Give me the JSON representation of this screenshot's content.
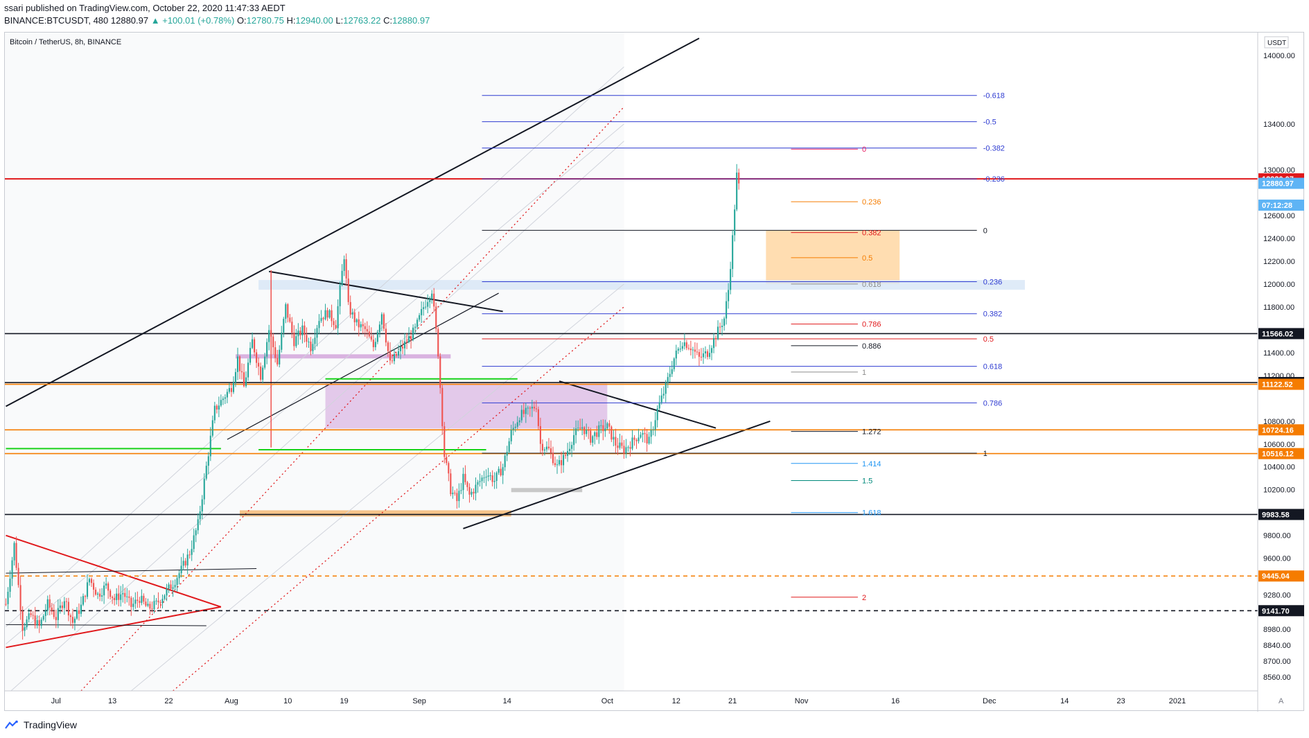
{
  "header": {
    "publisher_line": "ssari published on TradingView.com, October 22, 2020 11:47:33 AEDT",
    "symbol": "BINANCE:BTCUSDT, 480",
    "last": "12880.97",
    "change": "▲ +100.01 (+0.78%)",
    "o_label": "O:",
    "o": "12780.75",
    "h_label": "H:",
    "h": "12940.00",
    "l_label": "L:",
    "l": "12763.22",
    "c_label": "C:",
    "c": "12880.97"
  },
  "footer": {
    "brand": "TradingView",
    "brand_icon": "tradingview-logo-icon"
  },
  "colors": {
    "up": "#26a69a",
    "down": "#ef5350",
    "fib_blue": "#2e3bd1",
    "red_line": "#e0181b",
    "black": "#131722",
    "orange": "#f57c00",
    "green": "#19d21a",
    "purple_zone": "#e3c9ea",
    "orange_zone": "#ffd9a8"
  },
  "chart_data": {
    "type": "candlestick",
    "title": "Bitcoin / TetherUS, 8h, BINANCE",
    "currency": "USDT",
    "y_range": [
      8440,
      14200
    ],
    "price_axis_ticks": [
      8560,
      8700,
      8840,
      8980,
      9120,
      9280,
      9440,
      9600,
      9800,
      10000,
      10200,
      10400,
      10600,
      10800,
      11000,
      11200,
      11400,
      11600,
      11800,
      12000,
      12200,
      12400,
      12600,
      12800,
      13000,
      13400,
      14000
    ],
    "price_axis_labels": [
      "8560.00",
      "8700.00",
      "8840.00",
      "8980.00",
      "",
      "9280.00",
      "",
      "9600.00",
      "9800.00",
      "",
      "10200.00",
      "10400.00",
      "10600.00",
      "10800.00",
      "",
      "11200.00",
      "11400.00",
      "",
      "11800.00",
      "12000.00",
      "12200.00",
      "12400.00",
      "12600.00",
      "",
      "13000.00",
      "13400.00",
      "14000.00"
    ],
    "time_axis": [
      {
        "label": "Jul",
        "bar": 24
      },
      {
        "label": "13",
        "bar": 51
      },
      {
        "label": "22",
        "bar": 78
      },
      {
        "label": "Aug",
        "bar": 108
      },
      {
        "label": "10",
        "bar": 135
      },
      {
        "label": "19",
        "bar": 162
      },
      {
        "label": "Sep",
        "bar": 198
      },
      {
        "label": "14",
        "bar": 240
      },
      {
        "label": "Oct",
        "bar": 288
      },
      {
        "label": "12",
        "bar": 321
      },
      {
        "label": "21",
        "bar": 348
      },
      {
        "label": "Nov",
        "bar": 381
      },
      {
        "label": "16",
        "bar": 426
      },
      {
        "label": "Dec",
        "bar": 471
      },
      {
        "label": "14",
        "bar": 507
      },
      {
        "label": "23",
        "bar": 534
      },
      {
        "label": "2021",
        "bar": 561
      }
    ],
    "bars_total": 600,
    "last_bar": 351,
    "price_key_points": [
      [
        0,
        9200
      ],
      [
        4,
        9720
      ],
      [
        8,
        9000
      ],
      [
        12,
        9100
      ],
      [
        16,
        9000
      ],
      [
        20,
        9200
      ],
      [
        24,
        9080
      ],
      [
        28,
        9250
      ],
      [
        32,
        9040
      ],
      [
        36,
        9180
      ],
      [
        40,
        9420
      ],
      [
        44,
        9280
      ],
      [
        48,
        9360
      ],
      [
        52,
        9240
      ],
      [
        56,
        9300
      ],
      [
        60,
        9180
      ],
      [
        64,
        9250
      ],
      [
        68,
        9160
      ],
      [
        72,
        9200
      ],
      [
        76,
        9290
      ],
      [
        80,
        9380
      ],
      [
        84,
        9500
      ],
      [
        88,
        9650
      ],
      [
        92,
        9900
      ],
      [
        96,
        10400
      ],
      [
        100,
        10900
      ],
      [
        104,
        11000
      ],
      [
        108,
        11100
      ],
      [
        111,
        11350
      ],
      [
        114,
        11100
      ],
      [
        118,
        11500
      ],
      [
        122,
        11200
      ],
      [
        126,
        11600
      ],
      [
        130,
        11300
      ],
      [
        134,
        11800
      ],
      [
        138,
        11500
      ],
      [
        142,
        11600
      ],
      [
        146,
        11450
      ],
      [
        150,
        11700
      ],
      [
        154,
        11750
      ],
      [
        158,
        11650
      ],
      [
        162,
        12250
      ],
      [
        164,
        11800
      ],
      [
        168,
        11650
      ],
      [
        172,
        11600
      ],
      [
        176,
        11450
      ],
      [
        180,
        11750
      ],
      [
        184,
        11300
      ],
      [
        188,
        11400
      ],
      [
        192,
        11500
      ],
      [
        196,
        11600
      ],
      [
        200,
        11800
      ],
      [
        204,
        11950
      ],
      [
        207,
        11400
      ],
      [
        210,
        10500
      ],
      [
        213,
        10200
      ],
      [
        216,
        10100
      ],
      [
        219,
        10300
      ],
      [
        222,
        10150
      ],
      [
        226,
        10250
      ],
      [
        230,
        10350
      ],
      [
        234,
        10280
      ],
      [
        238,
        10400
      ],
      [
        242,
        10700
      ],
      [
        246,
        10850
      ],
      [
        250,
        10880
      ],
      [
        254,
        10940
      ],
      [
        256,
        10600
      ],
      [
        260,
        10550
      ],
      [
        264,
        10400
      ],
      [
        268,
        10500
      ],
      [
        272,
        10680
      ],
      [
        276,
        10750
      ],
      [
        280,
        10650
      ],
      [
        284,
        10720
      ],
      [
        288,
        10750
      ],
      [
        292,
        10600
      ],
      [
        296,
        10550
      ],
      [
        300,
        10620
      ],
      [
        304,
        10700
      ],
      [
        308,
        10620
      ],
      [
        312,
        10900
      ],
      [
        316,
        11100
      ],
      [
        320,
        11350
      ],
      [
        324,
        11500
      ],
      [
        328,
        11450
      ],
      [
        332,
        11350
      ],
      [
        336,
        11400
      ],
      [
        340,
        11550
      ],
      [
        344,
        11700
      ],
      [
        346,
        11950
      ],
      [
        348,
        12400
      ],
      [
        350,
        12950
      ],
      [
        351,
        12880
      ]
    ],
    "horizontal_levels": [
      {
        "value": "12920.07",
        "color": "#e0181b",
        "label_bg": "#e0181b",
        "style": "solid"
      },
      {
        "value": "11566.02",
        "color": "#131722",
        "label_bg": "#131722",
        "style": "solid"
      },
      {
        "value": "11138.00",
        "color": "#131722",
        "label_bg": "#131722",
        "style": "solid"
      },
      {
        "value": "11122.52",
        "color": "#f57c00",
        "label_bg": "#f57c00",
        "style": "solid"
      },
      {
        "value": "10724.16",
        "color": "#f57c00",
        "label_bg": "#f57c00",
        "style": "solid"
      },
      {
        "value": "10516.12",
        "color": "#f57c00",
        "label_bg": "#f57c00",
        "style": "solid"
      },
      {
        "value": "9983.58",
        "color": "#131722",
        "label_bg": "#131722",
        "style": "solid"
      },
      {
        "value": "9445.04",
        "color": "#f57c00",
        "label_bg": "#f57c00",
        "style": "dashed"
      },
      {
        "value": "9141.70",
        "color": "#131722",
        "label_bg": "#131722",
        "style": "dashed"
      }
    ],
    "price_labels_extra": [
      {
        "value": "12880.97",
        "bg": "#5eb4f5"
      },
      {
        "value": "07:12:28",
        "bg": "#5eb4f5",
        "price": 12690
      }
    ],
    "fib_blue": [
      {
        "label": "-0.618",
        "price": 13650
      },
      {
        "label": "-0.5",
        "price": 13420
      },
      {
        "label": "-0.382",
        "price": 13190
      },
      {
        "label": "-0.236",
        "price": 12920
      },
      {
        "label": "0",
        "price": 12470
      },
      {
        "label": "0.236",
        "price": 12020
      },
      {
        "label": "0.382",
        "price": 11740
      },
      {
        "label": "0.5",
        "price": 11520
      },
      {
        "label": "0.618",
        "price": 11280
      },
      {
        "label": "0.786",
        "price": 10960
      },
      {
        "label": "1",
        "price": 10520
      }
    ],
    "fib_colored": [
      {
        "label": "0",
        "price": 13180,
        "color": "#e91e63"
      },
      {
        "label": "0.236",
        "price": 12720,
        "color": "#f57c00"
      },
      {
        "label": "0.382",
        "price": 12450,
        "color": "#e0181b"
      },
      {
        "label": "0.5",
        "price": 12230,
        "color": "#f57c00"
      },
      {
        "label": "0.618",
        "price": 12000,
        "color": "#8d8d8d"
      },
      {
        "label": "0.786",
        "price": 11650,
        "color": "#e0181b"
      },
      {
        "label": "0.886",
        "price": 11460,
        "color": "#131722"
      },
      {
        "label": "1",
        "price": 11230,
        "color": "#8d8d8d"
      },
      {
        "label": "1.272",
        "price": 10710,
        "color": "#131722"
      },
      {
        "label": "1.414",
        "price": 10430,
        "color": "#2196f3"
      },
      {
        "label": "1.5",
        "price": 10280,
        "color": "#00897b"
      },
      {
        "label": "1.618",
        "price": 10000,
        "color": "#2196f3"
      },
      {
        "label": "2",
        "price": 9260,
        "color": "#e0181b"
      }
    ],
    "axis_corner_label": "A"
  }
}
